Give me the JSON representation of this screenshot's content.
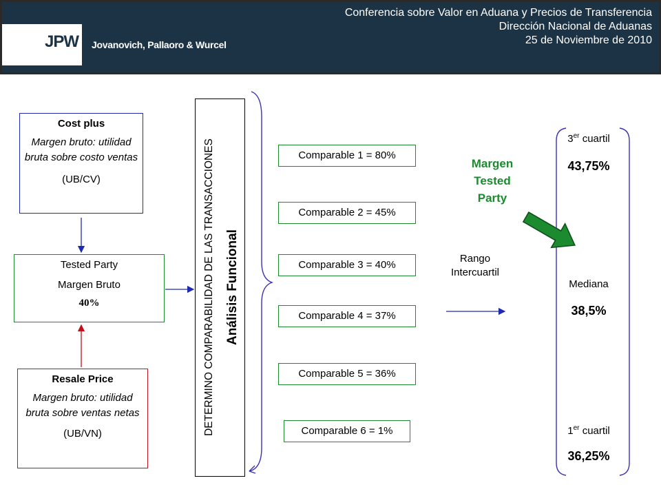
{
  "header": {
    "logo_mark": "JPW",
    "logo_name": "Jovanovich, Pallaoro & Wurcel",
    "line1": "Conferencia sobre Valor en Aduana y Precios de Transferencia",
    "line2": "Dirección Nacional de Aduanas",
    "line3": "25 de Noviembre de 2010"
  },
  "cost_plus": {
    "title": "Cost plus",
    "desc": "Margen bruto: utilidad bruta sobre costo ventas",
    "formula": "(UB/CV)"
  },
  "tested_party": {
    "title": "Tested Party",
    "subtitle": "Margen Bruto",
    "value": "40%"
  },
  "resale_price": {
    "title": "Resale Price",
    "desc": "Margen bruto: utilidad bruta sobre ventas netas",
    "formula": "(UB/VN)"
  },
  "vertical": {
    "comparabilidad": "DETERMINO COMPARABILIDAD DE LAS TRANSACCIONES",
    "analisis": "Análisis Funcional"
  },
  "comparables": [
    "Comparable 1 = 80%",
    "Comparable 2 = 45%",
    "Comparable 3 = 40%",
    "Comparable 4 = 37%",
    "Comparable 5 = 36%",
    "Comparable 6 = 1%"
  ],
  "margen_tested": {
    "line1": "Margen",
    "line2": "Tested",
    "line3": "Party"
  },
  "rango": {
    "line1": "Rango",
    "line2": "Intercuartil"
  },
  "quartiles": {
    "q3_num": "3",
    "q3_sup": "er",
    "q3_word": " cuartil",
    "q3_value": "43,75%",
    "median_label": "Mediana",
    "median_value": "38,5%",
    "q1_num": "1",
    "q1_sup": "er",
    "q1_word": " cuartil",
    "q1_value": "36,25%"
  },
  "colors": {
    "header_bg": "#1c3346",
    "blue": "#1f2ab0",
    "red": "#c0111b",
    "green": "#1c8a2e",
    "brace": "#3a2fb5"
  }
}
